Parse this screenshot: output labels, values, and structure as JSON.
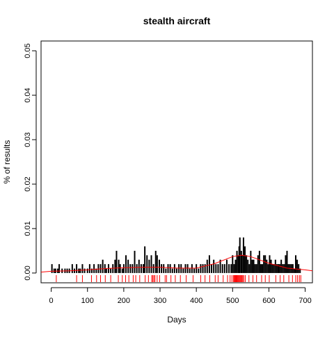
{
  "chart_data": {
    "type": "bar",
    "title": "stealth aircraft",
    "xlabel": "Days",
    "ylabel": "% of results",
    "xlim": [
      -28,
      720
    ],
    "ylim": [
      -0.0022,
      0.0522
    ],
    "xticks": [
      0,
      100,
      200,
      300,
      400,
      500,
      600,
      700
    ],
    "xtick_labels": [
      "0",
      "100",
      "200",
      "300",
      "400",
      "500",
      "600",
      "700"
    ],
    "yticks": [
      0.0,
      0.01,
      0.02,
      0.03,
      0.04,
      0.05
    ],
    "ytick_labels": [
      "0.00",
      "0.01",
      "0.02",
      "0.03",
      "0.04",
      "0.05"
    ],
    "grid": false,
    "bar_color": "#000000",
    "smooth_color": "#ff0000",
    "rug_color": "#ff0000",
    "series": [
      {
        "kind": "bars",
        "x": [
          2,
          8,
          12,
          18,
          22,
          30,
          38,
          44,
          50,
          58,
          64,
          70,
          76,
          80,
          86,
          92,
          100,
          106,
          112,
          118,
          124,
          130,
          136,
          142,
          148,
          152,
          158,
          164,
          170,
          176,
          180,
          186,
          190,
          196,
          200,
          206,
          212,
          218,
          224,
          230,
          236,
          242,
          248,
          254,
          258,
          264,
          270,
          276,
          282,
          288,
          292,
          298,
          304,
          310,
          316,
          322,
          328,
          334,
          340,
          346,
          352,
          358,
          364,
          370,
          376,
          382,
          388,
          394,
          400,
          406,
          412,
          418,
          424,
          430,
          436,
          442,
          448,
          454,
          460,
          466,
          472,
          478,
          484,
          490,
          496,
          500,
          504,
          508,
          512,
          516,
          518,
          520,
          524,
          526,
          530,
          534,
          538,
          542,
          546,
          550,
          554,
          558,
          562,
          566,
          570,
          574,
          578,
          582,
          586,
          590,
          594,
          598,
          602,
          606,
          610,
          614,
          618,
          622,
          626,
          630,
          634,
          638,
          642,
          646,
          650,
          654,
          658,
          662,
          666,
          670,
          674,
          678,
          682,
          686
        ],
        "values": [
          0.002,
          0.001,
          0.001,
          0.001,
          0.002,
          0.001,
          0.001,
          0.001,
          0.001,
          0.002,
          0.001,
          0.002,
          0.001,
          0.001,
          0.002,
          0.001,
          0.001,
          0.002,
          0.001,
          0.002,
          0.001,
          0.002,
          0.002,
          0.003,
          0.002,
          0.001,
          0.002,
          0.001,
          0.002,
          0.003,
          0.005,
          0.003,
          0.002,
          0.001,
          0.002,
          0.004,
          0.003,
          0.002,
          0.002,
          0.005,
          0.002,
          0.003,
          0.002,
          0.002,
          0.006,
          0.004,
          0.003,
          0.004,
          0.002,
          0.005,
          0.004,
          0.003,
          0.002,
          0.002,
          0.001,
          0.002,
          0.002,
          0.001,
          0.002,
          0.001,
          0.002,
          0.002,
          0.001,
          0.002,
          0.002,
          0.001,
          0.002,
          0.001,
          0.002,
          0.001,
          0.002,
          0.002,
          0.002,
          0.003,
          0.004,
          0.002,
          0.003,
          0.002,
          0.002,
          0.003,
          0.002,
          0.002,
          0.003,
          0.002,
          0.002,
          0.004,
          0.002,
          0.003,
          0.005,
          0.004,
          0.006,
          0.008,
          0.005,
          0.004,
          0.008,
          0.006,
          0.004,
          0.003,
          0.002,
          0.005,
          0.003,
          0.003,
          0.002,
          0.002,
          0.004,
          0.005,
          0.002,
          0.002,
          0.004,
          0.004,
          0.003,
          0.002,
          0.004,
          0.003,
          0.002,
          0.002,
          0.003,
          0.002,
          0.002,
          0.002,
          0.003,
          0.002,
          0.002,
          0.004,
          0.005,
          0.002,
          0.002,
          0.002,
          0.002,
          0.001,
          0.004,
          0.003,
          0.002,
          0.001
        ]
      },
      {
        "kind": "smooth-line",
        "x": [
          -28,
          0,
          50,
          100,
          150,
          200,
          250,
          300,
          350,
          400,
          450,
          500,
          525,
          550,
          600,
          650,
          700,
          720
        ],
        "values": [
          0.0002,
          0.0004,
          0.0005,
          0.0007,
          0.001,
          0.0012,
          0.0013,
          0.0013,
          0.0011,
          0.0011,
          0.0021,
          0.0037,
          0.004,
          0.0037,
          0.0022,
          0.0011,
          0.0007,
          0.0005
        ]
      },
      {
        "kind": "rug",
        "x": [
          14,
          70,
          86,
          111,
          125,
          136,
          149,
          164,
          185,
          196,
          205,
          214,
          226,
          233,
          244,
          259,
          268,
          277,
          280,
          283,
          286,
          292,
          299,
          314,
          318,
          330,
          342,
          356,
          372,
          391,
          412,
          424,
          437,
          452,
          460,
          474,
          486,
          493,
          498,
          502,
          504,
          506,
          508,
          510,
          512,
          514,
          516,
          518,
          520,
          522,
          524,
          526,
          528,
          531,
          535,
          545,
          556,
          566,
          580,
          590,
          601,
          619,
          631,
          641,
          655,
          665,
          674,
          679,
          684,
          688
        ]
      }
    ]
  }
}
